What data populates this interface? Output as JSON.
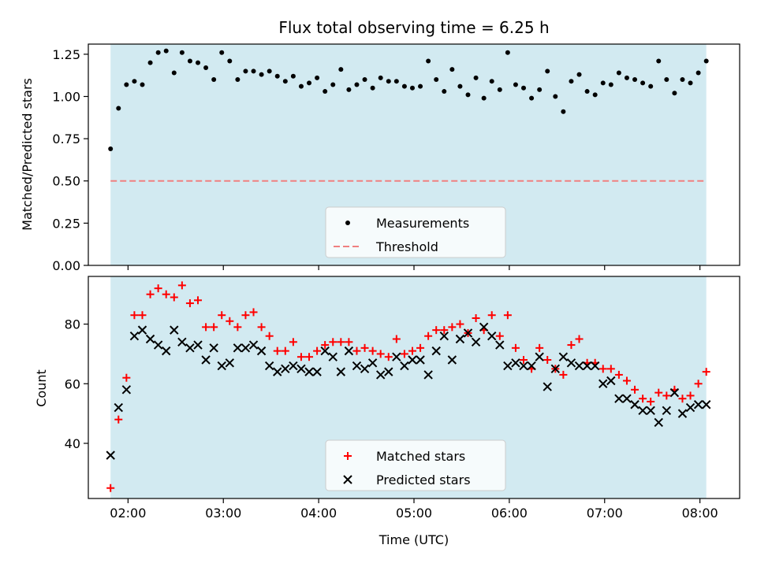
{
  "chart_data": [
    {
      "type": "scatter",
      "title": "Flux total observing time = 6.25 h",
      "xlabel": "",
      "ylabel": "Matched/Predicted stars",
      "xlim": [
        "01:35",
        "08:25"
      ],
      "ylim": [
        0,
        1.31
      ],
      "xticks": [
        "02:00",
        "03:00",
        "04:00",
        "05:00",
        "06:00",
        "07:00",
        "08:00"
      ],
      "yticks": [
        "0.00",
        "0.25",
        "0.50",
        "0.75",
        "1.00",
        "1.25"
      ],
      "shaded_span": [
        "01:49",
        "08:04"
      ],
      "shade_color": "#add8e6",
      "legend_position": "lower center",
      "series": [
        {
          "name": "Measurements",
          "marker": "dot",
          "color": "#000000",
          "points": [
            [
              "01:49",
              0.69
            ],
            [
              "01:54",
              0.93
            ],
            [
              "01:59",
              1.07
            ],
            [
              "02:04",
              1.09
            ],
            [
              "02:09",
              1.07
            ],
            [
              "02:14",
              1.2
            ],
            [
              "02:19",
              1.26
            ],
            [
              "02:24",
              1.27
            ],
            [
              "02:29",
              1.14
            ],
            [
              "02:34",
              1.26
            ],
            [
              "02:39",
              1.21
            ],
            [
              "02:44",
              1.2
            ],
            [
              "02:49",
              1.17
            ],
            [
              "02:54",
              1.1
            ],
            [
              "02:59",
              1.26
            ],
            [
              "03:04",
              1.21
            ],
            [
              "03:09",
              1.1
            ],
            [
              "03:14",
              1.15
            ],
            [
              "03:19",
              1.15
            ],
            [
              "03:24",
              1.13
            ],
            [
              "03:29",
              1.15
            ],
            [
              "03:34",
              1.12
            ],
            [
              "03:39",
              1.09
            ],
            [
              "03:44",
              1.12
            ],
            [
              "03:49",
              1.06
            ],
            [
              "03:54",
              1.08
            ],
            [
              "03:59",
              1.11
            ],
            [
              "04:04",
              1.03
            ],
            [
              "04:09",
              1.07
            ],
            [
              "04:14",
              1.16
            ],
            [
              "04:19",
              1.04
            ],
            [
              "04:24",
              1.07
            ],
            [
              "04:29",
              1.1
            ],
            [
              "04:34",
              1.05
            ],
            [
              "04:39",
              1.11
            ],
            [
              "04:44",
              1.09
            ],
            [
              "04:49",
              1.09
            ],
            [
              "04:54",
              1.06
            ],
            [
              "04:59",
              1.05
            ],
            [
              "05:04",
              1.06
            ],
            [
              "05:09",
              1.21
            ],
            [
              "05:14",
              1.1
            ],
            [
              "05:19",
              1.03
            ],
            [
              "05:24",
              1.16
            ],
            [
              "05:29",
              1.06
            ],
            [
              "05:34",
              1.01
            ],
            [
              "05:39",
              1.11
            ],
            [
              "05:44",
              0.99
            ],
            [
              "05:49",
              1.09
            ],
            [
              "05:54",
              1.04
            ],
            [
              "05:59",
              1.26
            ],
            [
              "06:04",
              1.07
            ],
            [
              "06:09",
              1.05
            ],
            [
              "06:14",
              0.99
            ],
            [
              "06:19",
              1.04
            ],
            [
              "06:24",
              1.15
            ],
            [
              "06:29",
              1.0
            ],
            [
              "06:34",
              0.91
            ],
            [
              "06:39",
              1.09
            ],
            [
              "06:44",
              1.13
            ],
            [
              "06:49",
              1.03
            ],
            [
              "06:54",
              1.01
            ],
            [
              "06:59",
              1.08
            ],
            [
              "07:04",
              1.07
            ],
            [
              "07:09",
              1.14
            ],
            [
              "07:14",
              1.11
            ],
            [
              "07:19",
              1.1
            ],
            [
              "07:24",
              1.08
            ],
            [
              "07:29",
              1.06
            ],
            [
              "07:34",
              1.21
            ],
            [
              "07:39",
              1.1
            ],
            [
              "07:44",
              1.02
            ],
            [
              "07:49",
              1.1
            ],
            [
              "07:54",
              1.08
            ],
            [
              "07:59",
              1.14
            ],
            [
              "08:04",
              1.21
            ]
          ]
        },
        {
          "name": "Threshold",
          "marker": "dashed-line",
          "color": "#f08080",
          "y": 0.5
        }
      ]
    },
    {
      "type": "scatter",
      "title": "",
      "xlabel": "Time (UTC)",
      "ylabel": "Count",
      "xlim": [
        "01:35",
        "08:25"
      ],
      "ylim": [
        21.5,
        96
      ],
      "xticks": [
        "02:00",
        "03:00",
        "04:00",
        "05:00",
        "06:00",
        "07:00",
        "08:00"
      ],
      "yticks": [
        "40",
        "60",
        "80"
      ],
      "shaded_span": [
        "01:49",
        "08:04"
      ],
      "shade_color": "#add8e6",
      "legend_position": "lower center",
      "series": [
        {
          "name": "Matched stars",
          "marker": "plus",
          "color": "#ff0000",
          "points": [
            [
              "01:49",
              25
            ],
            [
              "01:54",
              48
            ],
            [
              "01:59",
              62
            ],
            [
              "02:04",
              83
            ],
            [
              "02:09",
              83
            ],
            [
              "02:14",
              90
            ],
            [
              "02:19",
              92
            ],
            [
              "02:24",
              90
            ],
            [
              "02:29",
              89
            ],
            [
              "02:34",
              93
            ],
            [
              "02:39",
              87
            ],
            [
              "02:44",
              88
            ],
            [
              "02:49",
              79
            ],
            [
              "02:54",
              79
            ],
            [
              "02:59",
              83
            ],
            [
              "03:04",
              81
            ],
            [
              "03:09",
              79
            ],
            [
              "03:14",
              83
            ],
            [
              "03:19",
              84
            ],
            [
              "03:24",
              79
            ],
            [
              "03:29",
              76
            ],
            [
              "03:34",
              71
            ],
            [
              "03:39",
              71
            ],
            [
              "03:44",
              74
            ],
            [
              "03:49",
              69
            ],
            [
              "03:54",
              69
            ],
            [
              "03:59",
              71
            ],
            [
              "04:04",
              73
            ],
            [
              "04:09",
              74
            ],
            [
              "04:14",
              74
            ],
            [
              "04:19",
              74
            ],
            [
              "04:24",
              71
            ],
            [
              "04:29",
              72
            ],
            [
              "04:34",
              71
            ],
            [
              "04:39",
              70
            ],
            [
              "04:44",
              69
            ],
            [
              "04:49",
              75
            ],
            [
              "04:54",
              70
            ],
            [
              "04:59",
              71
            ],
            [
              "05:04",
              72
            ],
            [
              "05:09",
              76
            ],
            [
              "05:14",
              78
            ],
            [
              "05:19",
              78
            ],
            [
              "05:24",
              79
            ],
            [
              "05:29",
              80
            ],
            [
              "05:34",
              77
            ],
            [
              "05:39",
              82
            ],
            [
              "05:44",
              78
            ],
            [
              "05:49",
              83
            ],
            [
              "05:54",
              76
            ],
            [
              "05:59",
              83
            ],
            [
              "06:04",
              72
            ],
            [
              "06:09",
              68
            ],
            [
              "06:14",
              65
            ],
            [
              "06:19",
              72
            ],
            [
              "06:24",
              68
            ],
            [
              "06:29",
              65
            ],
            [
              "06:34",
              63
            ],
            [
              "06:39",
              73
            ],
            [
              "06:44",
              75
            ],
            [
              "06:49",
              67
            ],
            [
              "06:54",
              67
            ],
            [
              "06:59",
              65
            ],
            [
              "07:04",
              65
            ],
            [
              "07:09",
              63
            ],
            [
              "07:14",
              61
            ],
            [
              "07:19",
              58
            ],
            [
              "07:24",
              55
            ],
            [
              "07:29",
              54
            ],
            [
              "07:34",
              57
            ],
            [
              "07:39",
              56
            ],
            [
              "07:44",
              58
            ],
            [
              "07:49",
              55
            ],
            [
              "07:54",
              56
            ],
            [
              "07:59",
              60
            ],
            [
              "08:04",
              64
            ]
          ]
        },
        {
          "name": "Predicted stars",
          "marker": "x",
          "color": "#000000",
          "points": [
            [
              "01:49",
              36
            ],
            [
              "01:54",
              52
            ],
            [
              "01:59",
              58
            ],
            [
              "02:04",
              76
            ],
            [
              "02:09",
              78
            ],
            [
              "02:14",
              75
            ],
            [
              "02:19",
              73
            ],
            [
              "02:24",
              71
            ],
            [
              "02:29",
              78
            ],
            [
              "02:34",
              74
            ],
            [
              "02:39",
              72
            ],
            [
              "02:44",
              73
            ],
            [
              "02:49",
              68
            ],
            [
              "02:54",
              72
            ],
            [
              "02:59",
              66
            ],
            [
              "03:04",
              67
            ],
            [
              "03:09",
              72
            ],
            [
              "03:14",
              72
            ],
            [
              "03:19",
              73
            ],
            [
              "03:24",
              71
            ],
            [
              "03:29",
              66
            ],
            [
              "03:34",
              64
            ],
            [
              "03:39",
              65
            ],
            [
              "03:44",
              66
            ],
            [
              "03:49",
              65
            ],
            [
              "03:54",
              64
            ],
            [
              "03:59",
              64
            ],
            [
              "04:04",
              71
            ],
            [
              "04:09",
              69
            ],
            [
              "04:14",
              64
            ],
            [
              "04:19",
              71
            ],
            [
              "04:24",
              66
            ],
            [
              "04:29",
              65
            ],
            [
              "04:34",
              67
            ],
            [
              "04:39",
              63
            ],
            [
              "04:44",
              64
            ],
            [
              "04:49",
              69
            ],
            [
              "04:54",
              66
            ],
            [
              "04:59",
              68
            ],
            [
              "05:04",
              68
            ],
            [
              "05:09",
              63
            ],
            [
              "05:14",
              71
            ],
            [
              "05:19",
              76
            ],
            [
              "05:24",
              68
            ],
            [
              "05:29",
              75
            ],
            [
              "05:34",
              77
            ],
            [
              "05:39",
              74
            ],
            [
              "05:44",
              79
            ],
            [
              "05:49",
              76
            ],
            [
              "05:54",
              73
            ],
            [
              "05:59",
              66
            ],
            [
              "06:04",
              67
            ],
            [
              "06:09",
              66
            ],
            [
              "06:14",
              66
            ],
            [
              "06:19",
              69
            ],
            [
              "06:24",
              59
            ],
            [
              "06:29",
              65
            ],
            [
              "06:34",
              69
            ],
            [
              "06:39",
              67
            ],
            [
              "06:44",
              66
            ],
            [
              "06:49",
              66
            ],
            [
              "06:54",
              66
            ],
            [
              "06:59",
              60
            ],
            [
              "07:04",
              61
            ],
            [
              "07:09",
              55
            ],
            [
              "07:14",
              55
            ],
            [
              "07:19",
              53
            ],
            [
              "07:24",
              51
            ],
            [
              "07:29",
              51
            ],
            [
              "07:34",
              47
            ],
            [
              "07:39",
              51
            ],
            [
              "07:44",
              57
            ],
            [
              "07:49",
              50
            ],
            [
              "07:54",
              52
            ],
            [
              "07:59",
              53
            ],
            [
              "08:04",
              53
            ]
          ]
        }
      ]
    }
  ]
}
